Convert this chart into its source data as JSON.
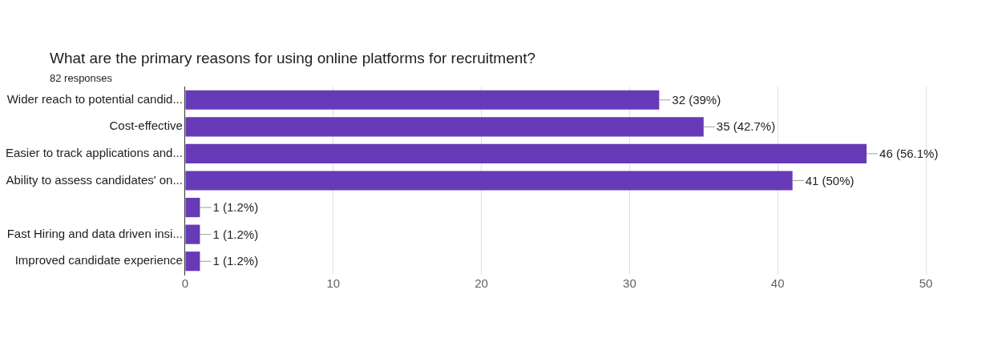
{
  "chart_data": {
    "type": "bar",
    "orientation": "horizontal",
    "title": "What are the primary reasons for using online platforms for recruitment?",
    "subtitle": "82 responses",
    "categories": [
      "Wider reach to potential candid...",
      "Cost-effective",
      "Easier to track applications and...",
      "Ability to assess candidates' on...",
      null,
      "Fast Hiring and data driven insi...",
      "Improved candidate experience"
    ],
    "values": [
      32,
      35,
      46,
      41,
      1,
      1,
      1
    ],
    "value_labels": [
      "32 (39%)",
      "35 (42.7%)",
      "46 (56.1%)",
      "41 (50%)",
      "1 (1.2%)",
      "1 (1.2%)",
      "1 (1.2%)"
    ],
    "color": "#673ab7",
    "xlim": [
      0,
      50
    ],
    "xticks": [
      0,
      10,
      20,
      30,
      40,
      50
    ],
    "grid": "x",
    "legend": false
  }
}
